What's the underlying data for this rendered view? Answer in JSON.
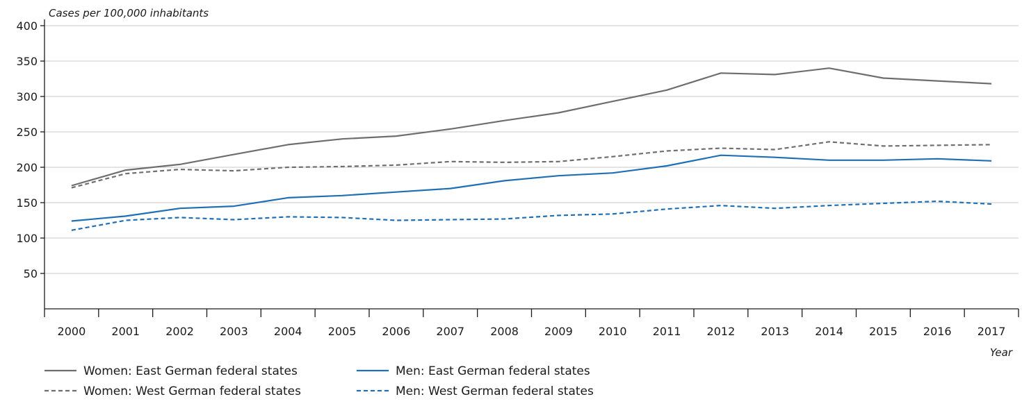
{
  "chart_data": {
    "type": "line",
    "ylabel": "Cases per 100,000 inhabitants",
    "xlabel": "Year",
    "ylim": [
      0,
      400
    ],
    "yticks": [
      50,
      100,
      150,
      200,
      250,
      300,
      350,
      400
    ],
    "grid": true,
    "legend_position": "bottom-left",
    "categories": [
      "2000",
      "2001",
      "2002",
      "2003",
      "2004",
      "2005",
      "2006",
      "2007",
      "2008",
      "2009",
      "2010",
      "2011",
      "2012",
      "2013",
      "2014",
      "2015",
      "2016",
      "2017"
    ],
    "series": [
      {
        "name": "Women: East German federal states",
        "color": "#6e6e6e",
        "dash": "solid",
        "values": [
          174,
          196,
          204,
          218,
          232,
          240,
          244,
          254,
          266,
          277,
          293,
          309,
          333,
          331,
          340,
          326,
          322,
          318
        ]
      },
      {
        "name": "Men: East German federal states",
        "color": "#1f6fb5",
        "dash": "solid",
        "values": [
          124,
          131,
          142,
          145,
          157,
          160,
          165,
          170,
          181,
          188,
          192,
          202,
          217,
          214,
          210,
          210,
          212,
          209
        ]
      },
      {
        "name": "Women: West German federal states",
        "color": "#6e6e6e",
        "dash": "dashed",
        "values": [
          171,
          191,
          197,
          195,
          200,
          201,
          203,
          208,
          207,
          208,
          215,
          223,
          227,
          225,
          236,
          230,
          231,
          232
        ]
      },
      {
        "name": "Men: West German federal states",
        "color": "#1f6fb5",
        "dash": "dashed",
        "values": [
          111,
          125,
          129,
          126,
          130,
          129,
          125,
          126,
          127,
          132,
          134,
          141,
          146,
          142,
          146,
          149,
          152,
          148
        ]
      }
    ]
  }
}
